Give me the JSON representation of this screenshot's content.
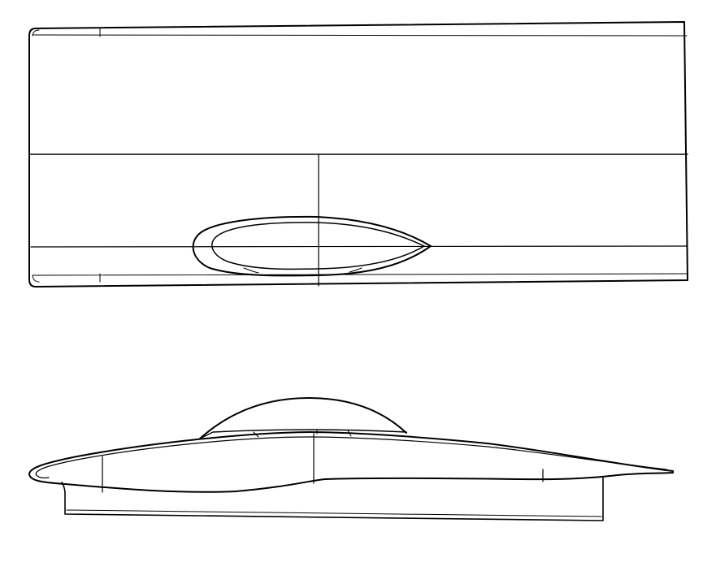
{
  "drawing": {
    "background_color": "#ffffff",
    "line_color": "#000000",
    "views": [
      {
        "name": "top-view"
      },
      {
        "name": "side-view"
      }
    ]
  }
}
